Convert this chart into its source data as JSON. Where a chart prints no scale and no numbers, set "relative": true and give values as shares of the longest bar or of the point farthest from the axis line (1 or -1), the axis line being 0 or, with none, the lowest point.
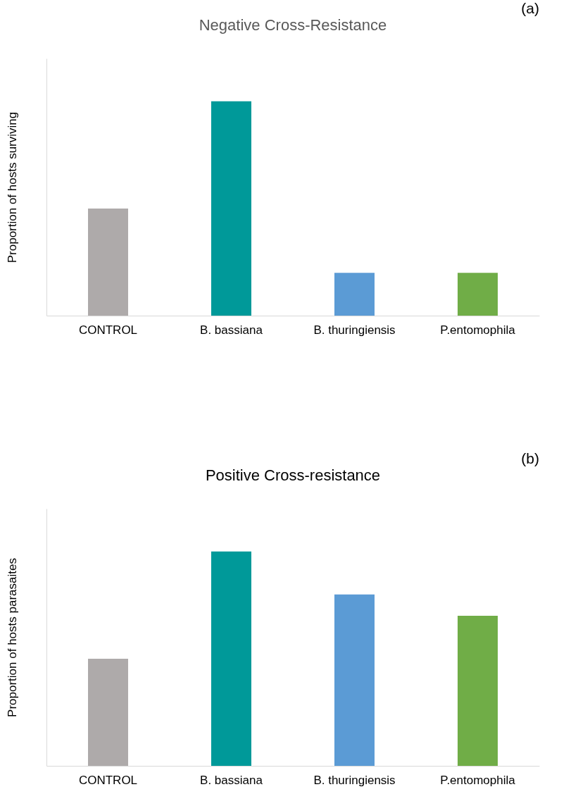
{
  "chart_data": [
    {
      "type": "bar",
      "title": "Negative Cross-Resistance",
      "ylabel": "Proportion of hosts surviving",
      "annotations": [
        "(a)"
      ],
      "relative": true,
      "categories": [
        "CONTROL",
        "B. bassiana",
        "B. thuringiensis",
        "P.entomophila"
      ],
      "values": [
        0.5,
        1,
        0.2,
        0.2
      ],
      "colors": [
        "#aeaaaa",
        "#009999",
        "#5b9bd5",
        "#70ad47"
      ]
    },
    {
      "type": "bar",
      "title": "Positive Cross-resistance",
      "ylabel": "Proportion of hosts parasaites",
      "annotations": [
        "(b)"
      ],
      "relative": true,
      "categories": [
        "CONTROL",
        "B. bassiana",
        "B. thuringiensis",
        "P.entomophila"
      ],
      "values": [
        0.5,
        1,
        0.8,
        0.7
      ],
      "colors": [
        "#aeaaaa",
        "#009999",
        "#5b9bd5",
        "#70ad47"
      ]
    }
  ]
}
